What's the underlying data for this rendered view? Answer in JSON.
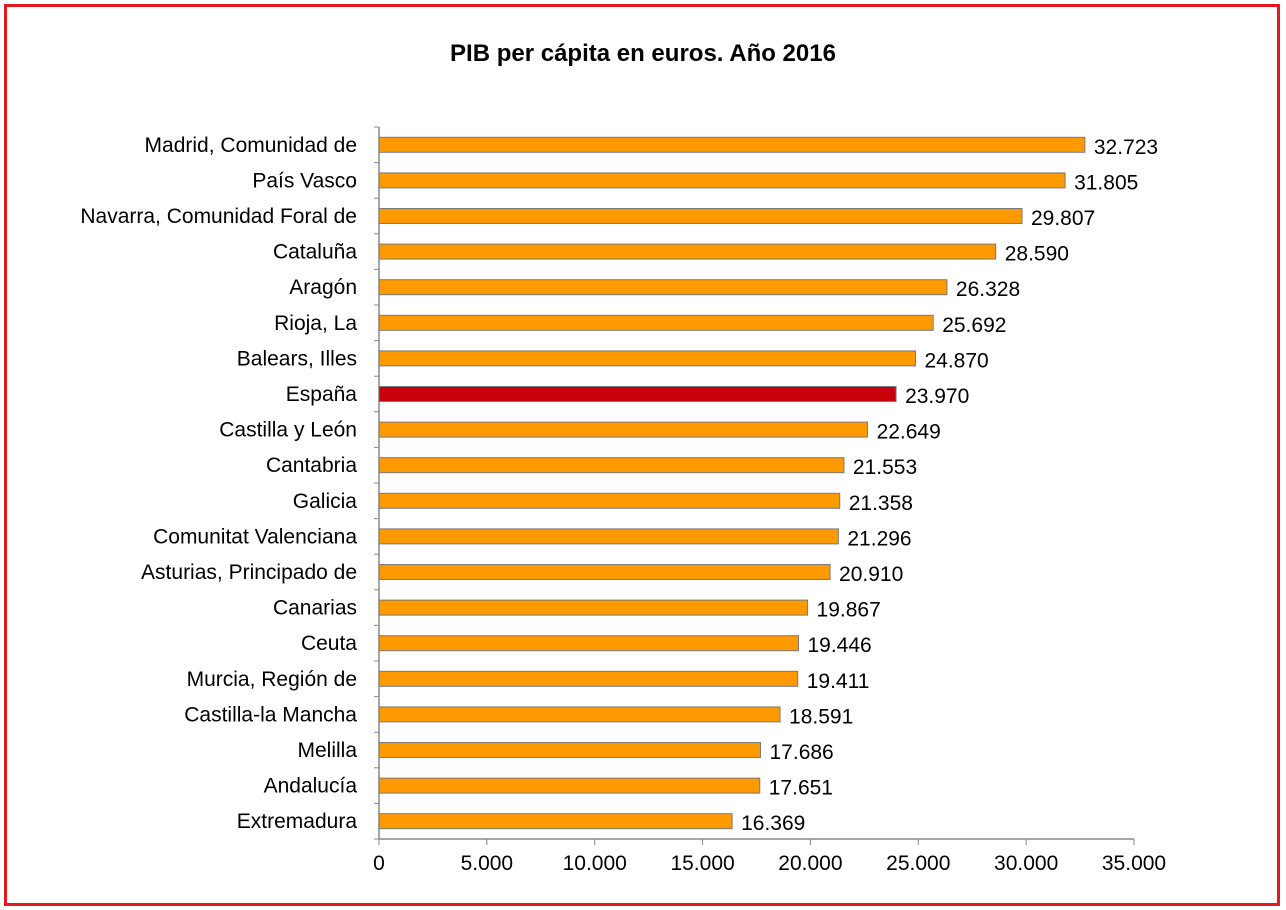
{
  "chart_data": {
    "type": "bar",
    "orientation": "horizontal",
    "title": "PIB per cápita en euros. Año 2016",
    "xlabel": "",
    "ylabel": "",
    "xlim": [
      0,
      35000
    ],
    "x_ticks": [
      0,
      5000,
      10000,
      15000,
      20000,
      25000,
      30000,
      35000
    ],
    "x_tick_labels": [
      "0",
      "5.000",
      "10.000",
      "15.000",
      "20.000",
      "25.000",
      "30.000",
      "35.000"
    ],
    "grid": false,
    "categories": [
      "Madrid, Comunidad de",
      "País Vasco",
      "Navarra, Comunidad Foral de",
      "Cataluña",
      "Aragón",
      "Rioja, La",
      "Balears, Illes",
      "España",
      "Castilla y León",
      "Cantabria",
      "Galicia",
      "Comunitat Valenciana",
      "Asturias, Principado de",
      "Canarias",
      "Ceuta",
      "Murcia, Región de",
      "Castilla-la Mancha",
      "Melilla",
      "Andalucía",
      "Extremadura"
    ],
    "values": [
      32723,
      31805,
      29807,
      28590,
      26328,
      25692,
      24870,
      23970,
      22649,
      21553,
      21358,
      21296,
      20910,
      19867,
      19446,
      19411,
      18591,
      17686,
      17651,
      16369
    ],
    "value_labels": [
      "32.723",
      "31.805",
      "29.807",
      "28.590",
      "26.328",
      "25.692",
      "24.870",
      "23.970",
      "22.649",
      "21.553",
      "21.358",
      "21.296",
      "20.910",
      "19.867",
      "19.446",
      "19.411",
      "18.591",
      "17.686",
      "17.651",
      "16.369"
    ],
    "colors": {
      "bar": "#ff9900",
      "highlight_bar": "#c8000a",
      "bar_border": "#7a7a7a",
      "axis": "#888888",
      "frame": "#e8161e"
    },
    "highlight_category": "España"
  }
}
